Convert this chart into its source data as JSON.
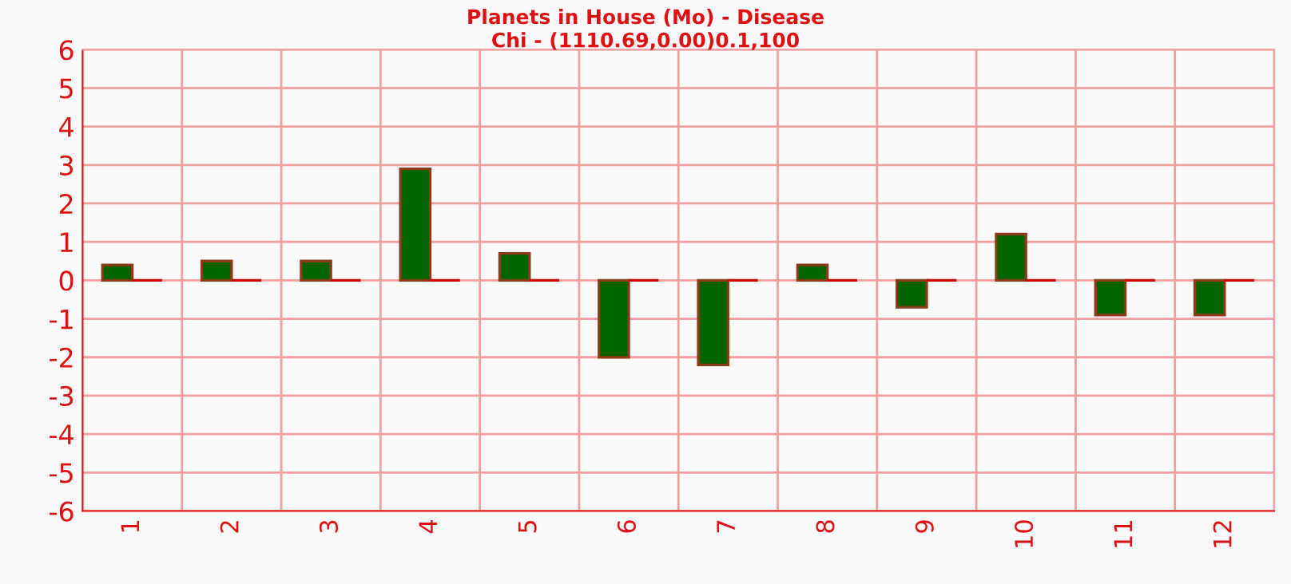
{
  "chart_data": {
    "type": "bar",
    "title": "Planets in House (Mo) - Disease",
    "subtitle": "Chi - (1110.69,0.00)0.1,100",
    "categories": [
      "1",
      "2",
      "3",
      "4",
      "5",
      "6",
      "7",
      "8",
      "9",
      "10",
      "11",
      "12"
    ],
    "series": [
      {
        "color": "#006400",
        "values": [
          0.4,
          0.5,
          0.5,
          2.9,
          0.7,
          -2.0,
          -2.2,
          0.4,
          -0.7,
          1.2,
          -0.9,
          -0.9
        ]
      },
      {
        "color": "#cc0000",
        "values": [
          0,
          0,
          0,
          0,
          0,
          0,
          0,
          0,
          0,
          0,
          0,
          0
        ]
      }
    ],
    "ylim": [
      -6,
      6
    ],
    "yticks": [
      -6,
      -5,
      -4,
      -3,
      -2,
      -1,
      0,
      1,
      2,
      3,
      4,
      5,
      6
    ],
    "grid": true
  }
}
